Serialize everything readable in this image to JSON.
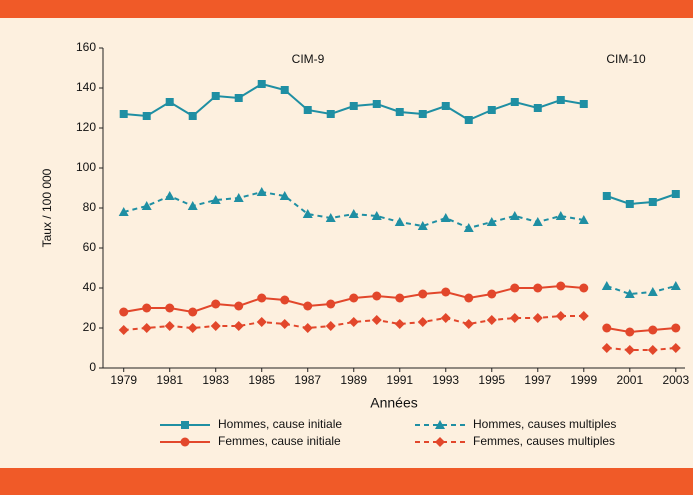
{
  "chart_data": {
    "type": "line",
    "ylabel": "Taux / 100 000",
    "xlabel": "Années",
    "annotations": [
      "CIM-9",
      "CIM-10"
    ],
    "x": [
      1979,
      1980,
      1981,
      1982,
      1983,
      1984,
      1985,
      1986,
      1987,
      1988,
      1989,
      1990,
      1991,
      1992,
      1993,
      1994,
      1995,
      1996,
      1997,
      1998,
      1999,
      null,
      2000,
      2001,
      2002,
      2003
    ],
    "series": [
      {
        "name": "Hommes, cause initiale",
        "color": "#1f8fa3",
        "dash": false,
        "marker": "square",
        "values": [
          127,
          126,
          133,
          126,
          136,
          135,
          142,
          139,
          129,
          127,
          131,
          132,
          128,
          127,
          131,
          124,
          129,
          133,
          130,
          134,
          132,
          null,
          86,
          82,
          83,
          87
        ]
      },
      {
        "name": "Hommes, causes multiples",
        "color": "#1f8fa3",
        "dash": true,
        "marker": "triangle",
        "values": [
          78,
          81,
          86,
          81,
          84,
          85,
          88,
          86,
          77,
          75,
          77,
          76,
          73,
          71,
          75,
          70,
          73,
          76,
          73,
          76,
          74,
          null,
          41,
          37,
          38,
          41
        ]
      },
      {
        "name": "Femmes, cause initiale",
        "color": "#e2472b",
        "dash": false,
        "marker": "circle",
        "values": [
          28,
          30,
          30,
          28,
          32,
          31,
          35,
          34,
          31,
          32,
          35,
          36,
          35,
          37,
          38,
          35,
          37,
          40,
          40,
          41,
          40,
          null,
          20,
          18,
          19,
          20
        ]
      },
      {
        "name": "Femmes, causes multiples",
        "color": "#e2472b",
        "dash": true,
        "marker": "diamond",
        "values": [
          19,
          20,
          21,
          20,
          21,
          21,
          23,
          22,
          20,
          21,
          23,
          24,
          22,
          23,
          25,
          22,
          24,
          25,
          25,
          26,
          26,
          null,
          10,
          9,
          9,
          10
        ]
      }
    ],
    "xlim": [
      1978.1,
      2003.4
    ],
    "xticks": [
      1979,
      1981,
      1983,
      1985,
      1987,
      1989,
      1991,
      1993,
      1995,
      1997,
      1999,
      2001,
      2003
    ],
    "ylim": [
      0,
      160
    ],
    "yticks": [
      0,
      20,
      40,
      60,
      80,
      100,
      120,
      140,
      160
    ],
    "grid": false
  }
}
